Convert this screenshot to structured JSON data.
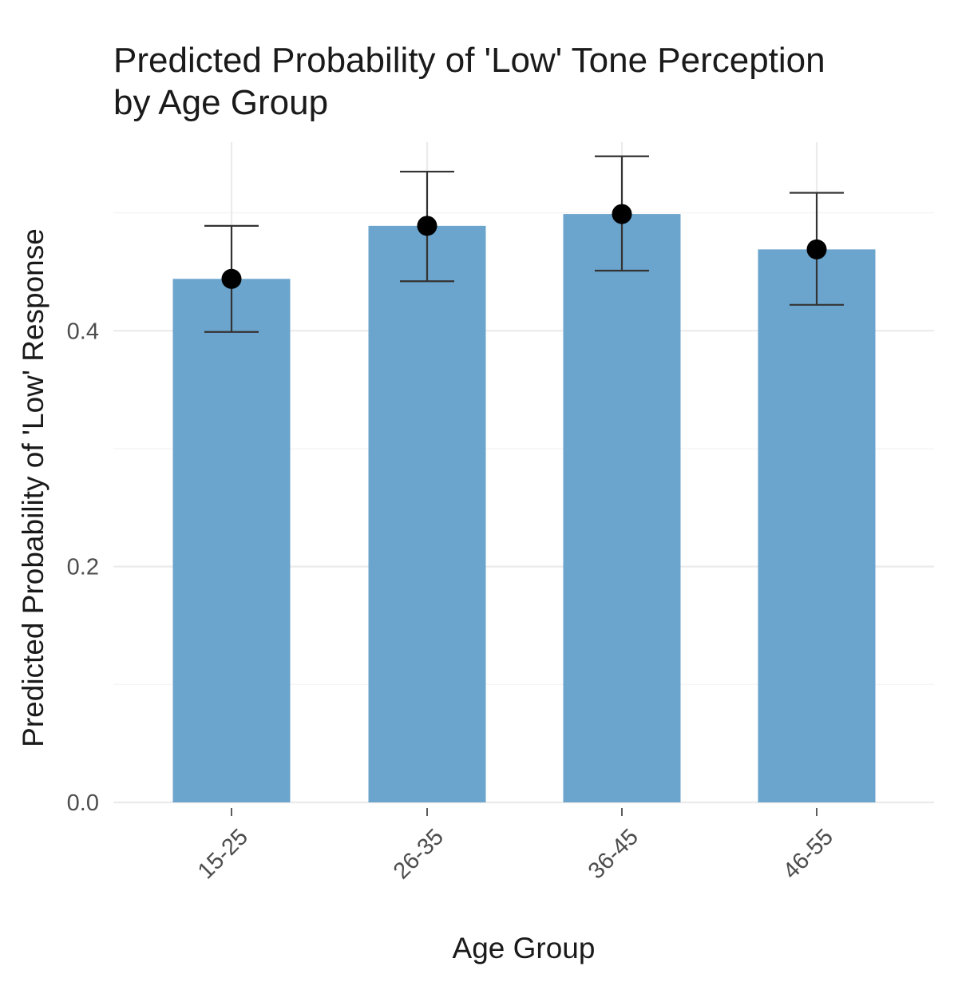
{
  "chart_data": {
    "type": "bar",
    "title_lines": [
      "Predicted Probability of 'Low' Tone Perception",
      "by Age Group"
    ],
    "xlabel": "Age Group",
    "ylabel": "Predicted Probability of 'Low' Response",
    "categories": [
      "15-25",
      "26-35",
      "36-45",
      "46-55"
    ],
    "values": [
      0.444,
      0.489,
      0.499,
      0.469
    ],
    "error_low": [
      0.399,
      0.442,
      0.451,
      0.422
    ],
    "error_high": [
      0.489,
      0.535,
      0.548,
      0.517
    ],
    "ylim": [
      0,
      0.56
    ],
    "yticks": [
      0.0,
      0.2,
      0.4
    ],
    "ytick_labels": [
      "0.0",
      "0.2",
      "0.4"
    ],
    "grid": true,
    "legend": "none",
    "bar_color": "#6ba4cc",
    "point_color": "#000000"
  }
}
